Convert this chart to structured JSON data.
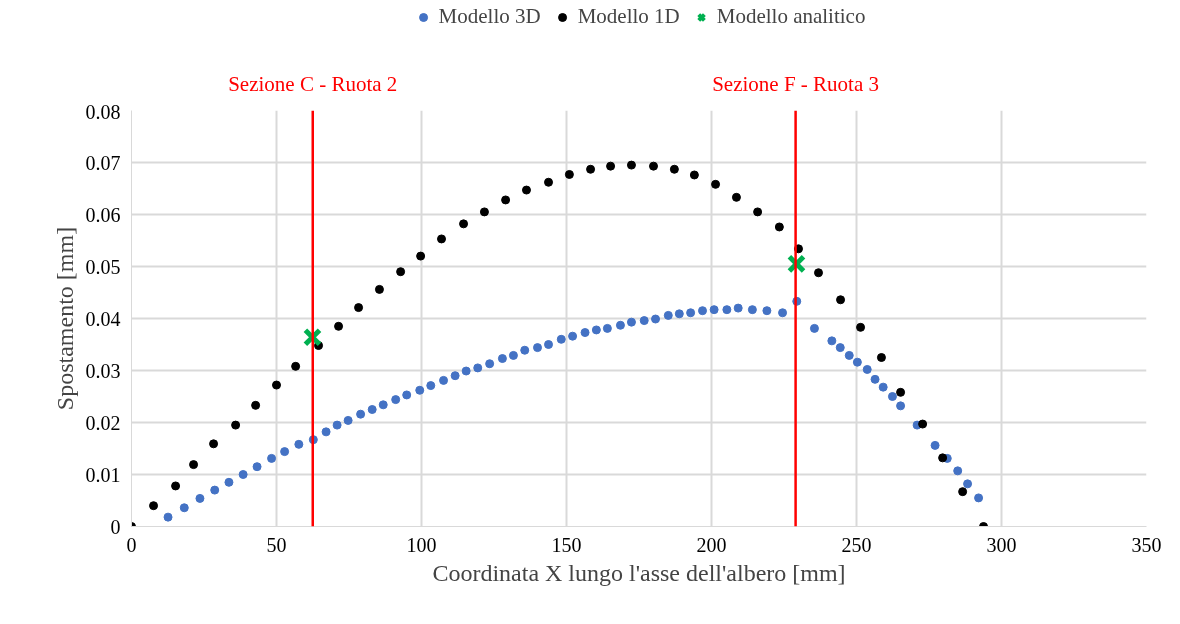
{
  "chart_data": {
    "type": "scatter",
    "xlabel": "Coordinata X lungo l'asse dell'albero [mm]",
    "ylabel": "Spostamento [mm]",
    "xlim": [
      0,
      350
    ],
    "xticks": [
      0,
      50,
      100,
      150,
      200,
      250,
      300,
      350
    ],
    "ylim": [
      0,
      0.08
    ],
    "yticks": [
      0,
      0.01,
      0.02,
      0.03,
      0.04,
      0.05,
      0.06,
      0.07,
      0.08
    ],
    "grid": true,
    "legend": "top",
    "marker": "circle",
    "series": [
      {
        "name": "Modello 3D",
        "color": "#4472c4",
        "x": [
          12.6,
          18.2,
          23.6,
          28.7,
          33.6,
          38.5,
          43.3,
          48.3,
          52.8,
          57.7,
          62.7,
          67.1,
          70.9,
          74.7,
          79.0,
          83.0,
          86.8,
          91.1,
          94.9,
          99.4,
          103.2,
          107.6,
          111.6,
          115.4,
          119.4,
          123.5,
          127.9,
          131.7,
          135.6,
          140.0,
          143.8,
          148.2,
          152.1,
          156.4,
          160.3,
          164.1,
          168.6,
          172.4,
          176.8,
          180.7,
          185.1,
          188.9,
          192.8,
          196.9,
          200.9,
          205.3,
          209.2,
          214.1,
          219.1,
          224.5,
          229.4,
          235.5,
          241.5,
          244.4,
          247.5,
          250.3,
          253.7,
          256.4,
          259.2,
          262.4,
          265.2,
          270.9,
          277.1,
          281.3,
          284.9,
          288.3,
          292.1
        ],
        "values": [
          0.0018,
          0.0036,
          0.0054,
          0.007,
          0.0085,
          0.01,
          0.0115,
          0.0131,
          0.0144,
          0.0158,
          0.0167,
          0.0182,
          0.0195,
          0.0204,
          0.0216,
          0.0225,
          0.0234,
          0.0244,
          0.0253,
          0.0262,
          0.0271,
          0.0281,
          0.029,
          0.0299,
          0.0305,
          0.0313,
          0.0323,
          0.0329,
          0.0339,
          0.0344,
          0.035,
          0.036,
          0.0366,
          0.0373,
          0.0378,
          0.0381,
          0.0387,
          0.0393,
          0.0396,
          0.0399,
          0.0406,
          0.0409,
          0.0411,
          0.0415,
          0.0417,
          0.0417,
          0.042,
          0.0417,
          0.0415,
          0.0411,
          0.0433,
          0.0381,
          0.0357,
          0.0344,
          0.0329,
          0.0316,
          0.0302,
          0.0283,
          0.0268,
          0.025,
          0.0232,
          0.0195,
          0.0156,
          0.0131,
          0.0107,
          0.0082,
          0.0055
        ]
      },
      {
        "name": "Modello 1D",
        "color": "#000000",
        "x": [
          0,
          7.6,
          15.2,
          21.4,
          28.3,
          35.9,
          42.8,
          50.0,
          56.6,
          64.5,
          71.4,
          78.3,
          85.5,
          92.8,
          99.7,
          106.9,
          114.5,
          121.7,
          129.0,
          136.2,
          143.8,
          151.0,
          158.3,
          165.2,
          172.4,
          180.0,
          187.2,
          194.1,
          201.4,
          208.6,
          215.9,
          223.4,
          230.0,
          236.9,
          244.5,
          251.4,
          258.6,
          265.2,
          272.8,
          279.7,
          286.6,
          293.8
        ],
        "values": [
          0,
          0.004,
          0.0078,
          0.0119,
          0.0159,
          0.0195,
          0.0233,
          0.0272,
          0.0308,
          0.0348,
          0.0385,
          0.0421,
          0.0456,
          0.049,
          0.052,
          0.0553,
          0.0582,
          0.0605,
          0.0628,
          0.0647,
          0.0662,
          0.0677,
          0.0687,
          0.0693,
          0.0695,
          0.0693,
          0.0687,
          0.0676,
          0.0658,
          0.0633,
          0.0605,
          0.0576,
          0.0534,
          0.0488,
          0.0436,
          0.0383,
          0.0325,
          0.0258,
          0.0197,
          0.0132,
          0.0067,
          0
        ]
      },
      {
        "name": "Modello analitico",
        "color": "#00b050",
        "marker": "cross",
        "x": [
          62.4,
          229.3
        ],
        "values": [
          0.0364,
          0.0505
        ]
      }
    ],
    "ref_lines": [
      {
        "axis": "x",
        "value": 62.5,
        "label": "Sezione C - Ruota 2",
        "color": "#ff0000"
      },
      {
        "axis": "x",
        "value": 229,
        "label": "Sezione F - Ruota 3",
        "color": "#ff0000"
      }
    ]
  }
}
